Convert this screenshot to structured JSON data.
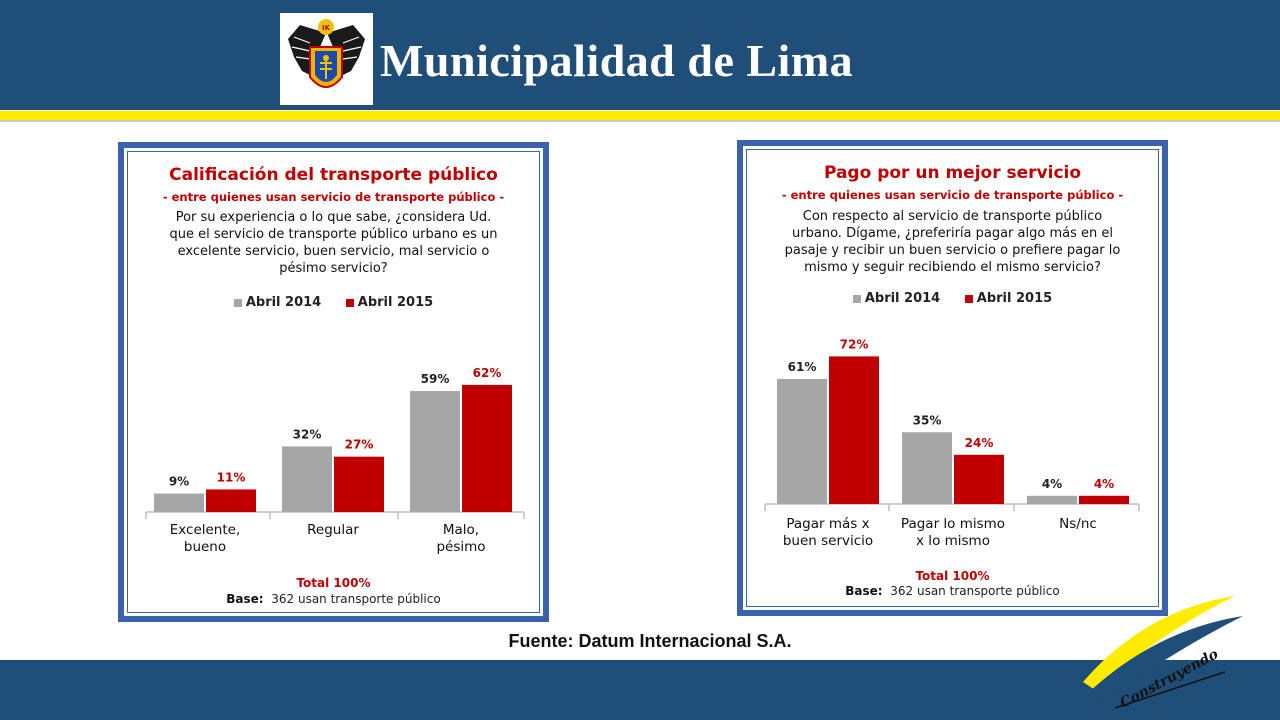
{
  "header": {
    "title": "Municipalidad de Lima",
    "logo_text": "IK"
  },
  "source": "Fuente: Datum Internacional S.A.",
  "slogan": "Construyendo",
  "colors": {
    "header_bg": "#1f4e79",
    "header_stripe": "#ffec00",
    "panel_border": "#3b62ad",
    "series_2014": "#a6a6a6",
    "series_2015": "#c00000"
  },
  "chart_data": [
    {
      "type": "bar",
      "title": "Calificación del transporte público",
      "subtitle": "- entre quienes usan servicio de transporte público -",
      "question": [
        "Por su experiencia o lo que sabe, ¿considera Ud.",
        "que el servicio de transporte público urbano es un",
        "excelente servicio, buen servicio, mal servicio o",
        "pésimo servicio?"
      ],
      "categories": [
        [
          "Excelente,",
          "bueno"
        ],
        [
          "Regular"
        ],
        [
          "Malo,",
          "pésimo"
        ]
      ],
      "series": [
        {
          "name": "Abril 2014",
          "values": [
            9,
            32,
            59
          ],
          "labels": [
            "9%",
            "32%",
            "59%"
          ]
        },
        {
          "name": "Abril 2015",
          "values": [
            11,
            27,
            62
          ],
          "labels": [
            "11%",
            "27%",
            "62%"
          ]
        }
      ],
      "total": "Total 100%",
      "base_label": "Base:",
      "base_text": "362 usan transporte público"
    },
    {
      "type": "bar",
      "title": "Pago por un mejor servicio",
      "subtitle": "- entre quienes usan servicio de transporte público -",
      "question": [
        "Con respecto al servicio de transporte público",
        "urbano. Dígame, ¿preferiría pagar algo más en el",
        "pasaje y recibir un buen servicio o prefiere pagar lo",
        "mismo y seguir recibiendo el mismo servicio?"
      ],
      "categories": [
        [
          "Pagar más x",
          "buen servicio"
        ],
        [
          "Pagar lo mismo",
          "x lo mismo"
        ],
        [
          "Ns/nc"
        ]
      ],
      "series": [
        {
          "name": "Abril 2014",
          "values": [
            61,
            35,
            4
          ],
          "labels": [
            "61%",
            "35%",
            "4%"
          ]
        },
        {
          "name": "Abril 2015",
          "values": [
            72,
            24,
            4
          ],
          "labels": [
            "72%",
            "24%",
            "4%"
          ]
        }
      ],
      "total": "Total 100%",
      "base_label": "Base:",
      "base_text": "362 usan transporte público"
    }
  ]
}
